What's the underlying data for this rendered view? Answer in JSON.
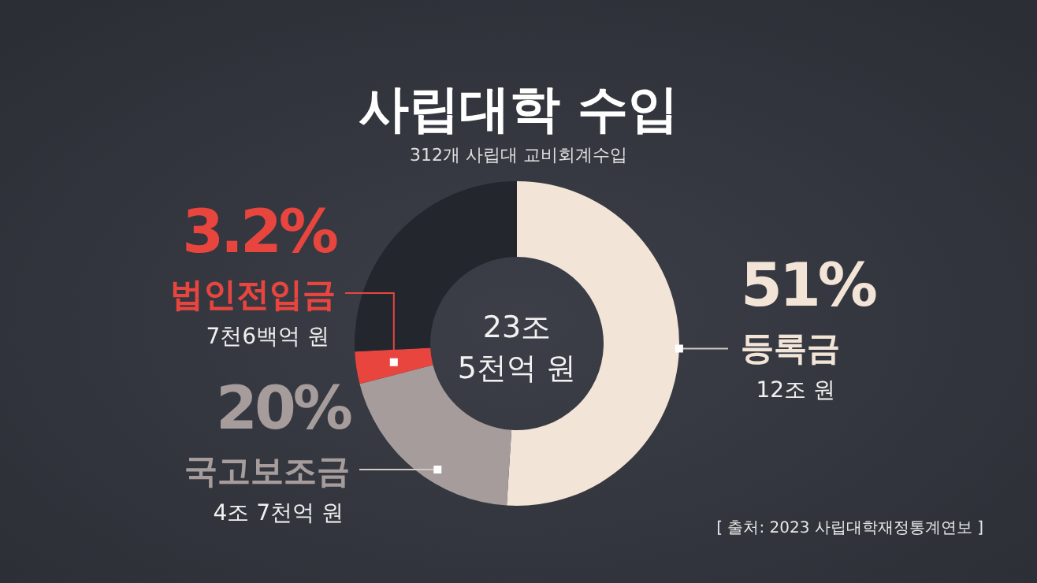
{
  "chart_data": {
    "type": "donut",
    "title": "사립대학 수입",
    "subtitle": "312개 사립대 교비회계수입",
    "categories": [
      "등록금",
      "국고보조금",
      "법인전입금",
      null
    ],
    "values": [
      51,
      20,
      3.2,
      25.8
    ],
    "colors": [
      "#f3e4d8",
      "#a69c9b",
      "#e8453f",
      "#23262c"
    ],
    "value_labels": [
      "51%",
      "20%",
      "3.2%",
      null
    ],
    "annotations": [
      "12조 원",
      "4조 7천억 원",
      "7천6백억 원",
      "23조 5천억 원",
      "[ 출처: 2023 사립대학재정통계연보 ]"
    ]
  }
}
